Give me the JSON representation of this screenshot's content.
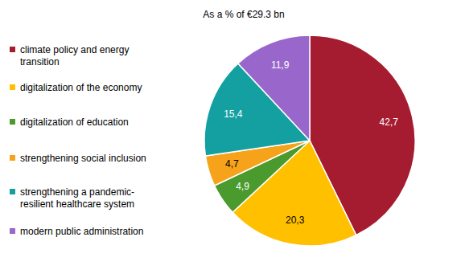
{
  "chart_data": {
    "type": "pie",
    "title": "As a % of €29.3 bn",
    "categories": [
      "climate policy and energy transition",
      "digitalization of the economy",
      "digitalization of education",
      "strengthening social inclusion",
      "strengthening a pandemic-resilient healthcare system",
      "modern public administration"
    ],
    "values": [
      42.7,
      20.3,
      4.9,
      4.7,
      15.4,
      11.9
    ],
    "value_labels": [
      "42,7",
      "20,3",
      "4,9",
      "4,7",
      "15,4",
      "11,9"
    ],
    "colors": [
      "#a51c30",
      "#ffc000",
      "#4a9a2e",
      "#f7a21b",
      "#14a0a0",
      "#9966cc"
    ],
    "data_labels": true,
    "legend": "left"
  }
}
